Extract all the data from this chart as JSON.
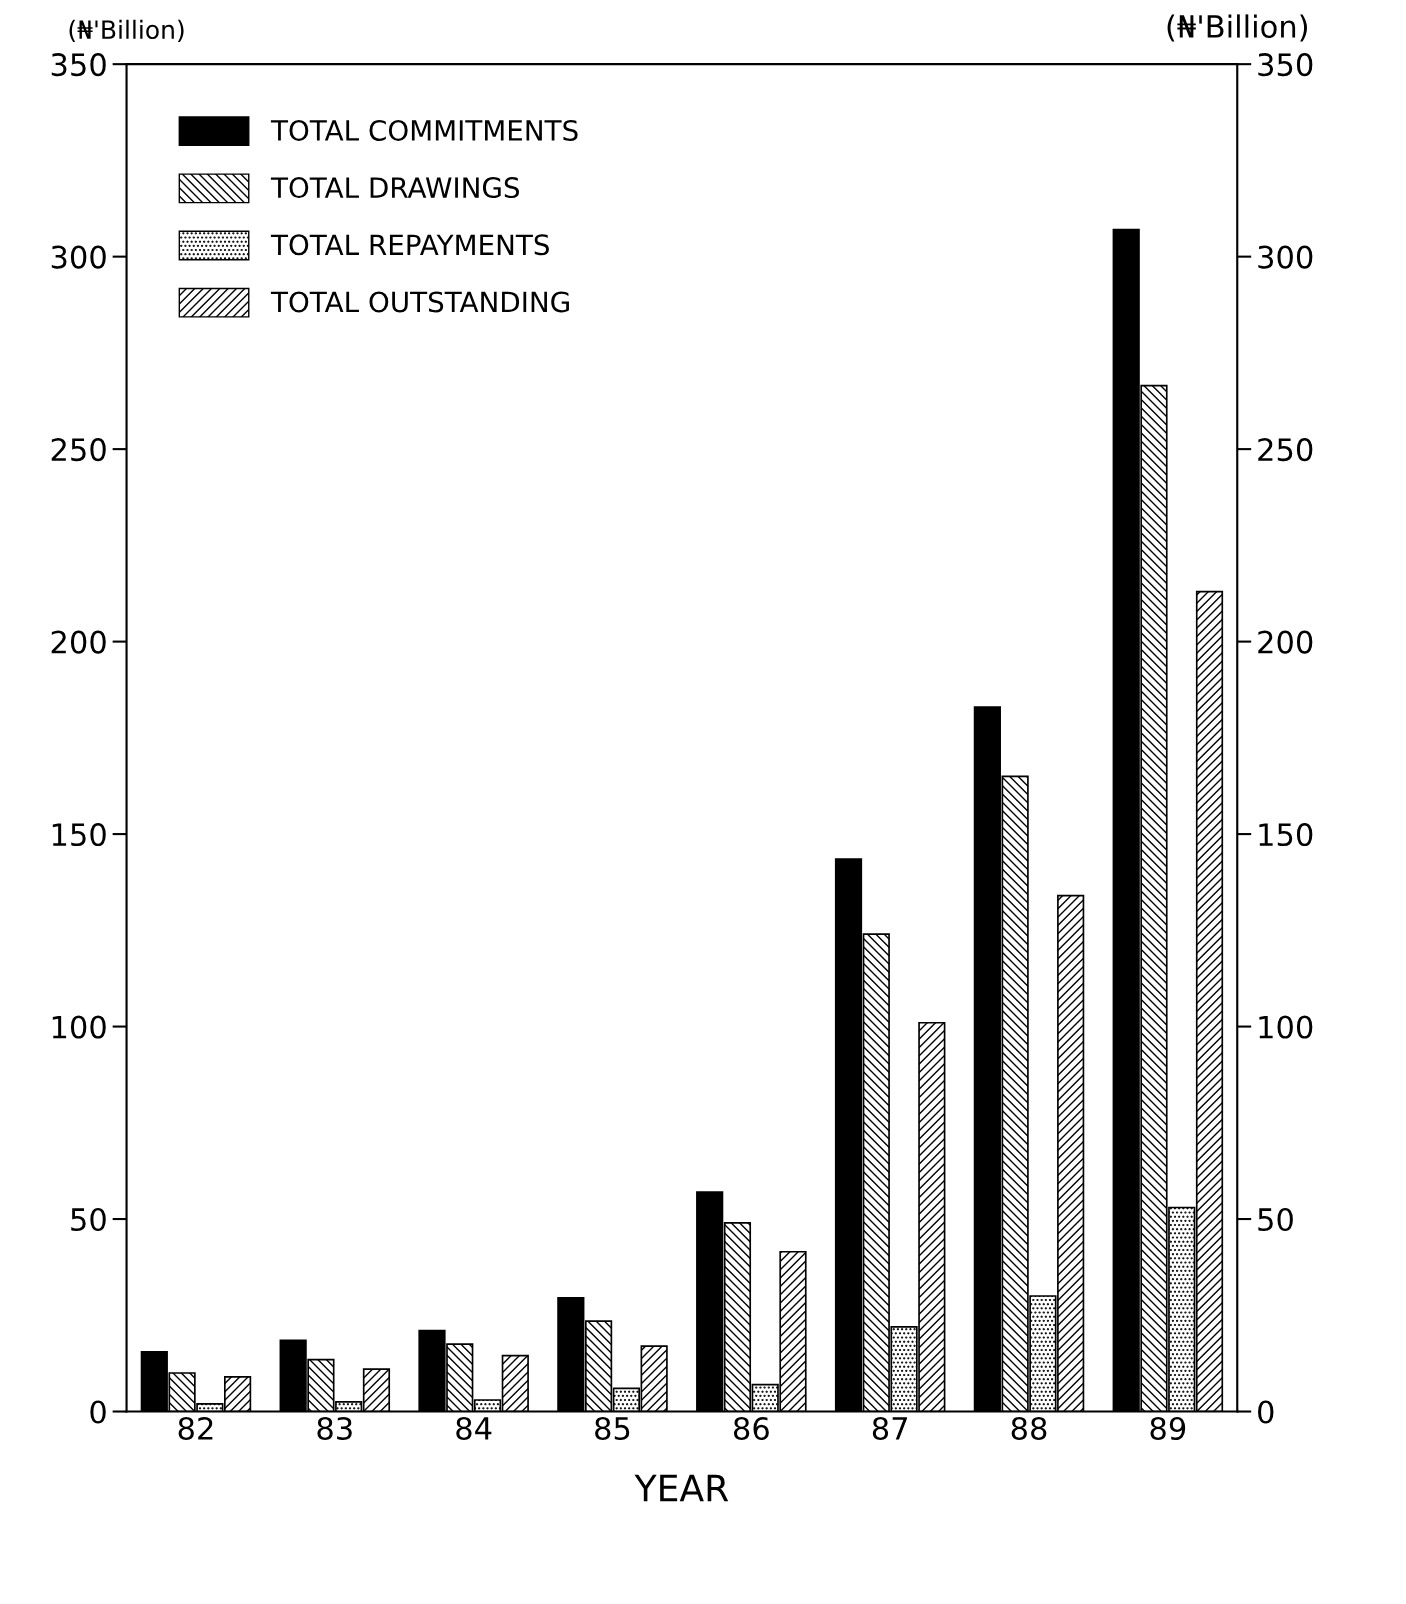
{
  "chart_data": {
    "type": "bar",
    "categories": [
      "82",
      "83",
      "84",
      "85",
      "86",
      "87",
      "88",
      "89"
    ],
    "series": [
      {
        "name": "TOTAL COMMITMENTS",
        "color": "#000000",
        "values": [
          15.5,
          18.5,
          21,
          29.5,
          57,
          143.5,
          183,
          307
        ]
      },
      {
        "name": "TOTAL DRAWINGS",
        "color": "#000000",
        "values": [
          10,
          13.5,
          17.5,
          23.5,
          49,
          124,
          165,
          266.5
        ]
      },
      {
        "name": "TOTAL REPAYMENTS",
        "color": "#000000",
        "values": [
          2,
          2.5,
          3,
          6,
          7,
          22,
          30,
          53
        ]
      },
      {
        "name": "TOTAL OUTSTANDING",
        "color": "#000000",
        "values": [
          9,
          11,
          14.5,
          17,
          41.5,
          101,
          134,
          213
        ]
      }
    ],
    "xlabel": "YEAR",
    "ylabel": "(₦'Billion)",
    "y2label": "(₦'Billion)",
    "ylim": [
      0,
      350
    ],
    "yticks": [
      0,
      50,
      100,
      150,
      200,
      250,
      300,
      350
    ],
    "y2lim": [
      0,
      350
    ],
    "y2ticks": [
      0,
      50,
      100,
      150,
      200,
      250,
      300,
      350
    ],
    "legend": "top left",
    "grid": false
  }
}
